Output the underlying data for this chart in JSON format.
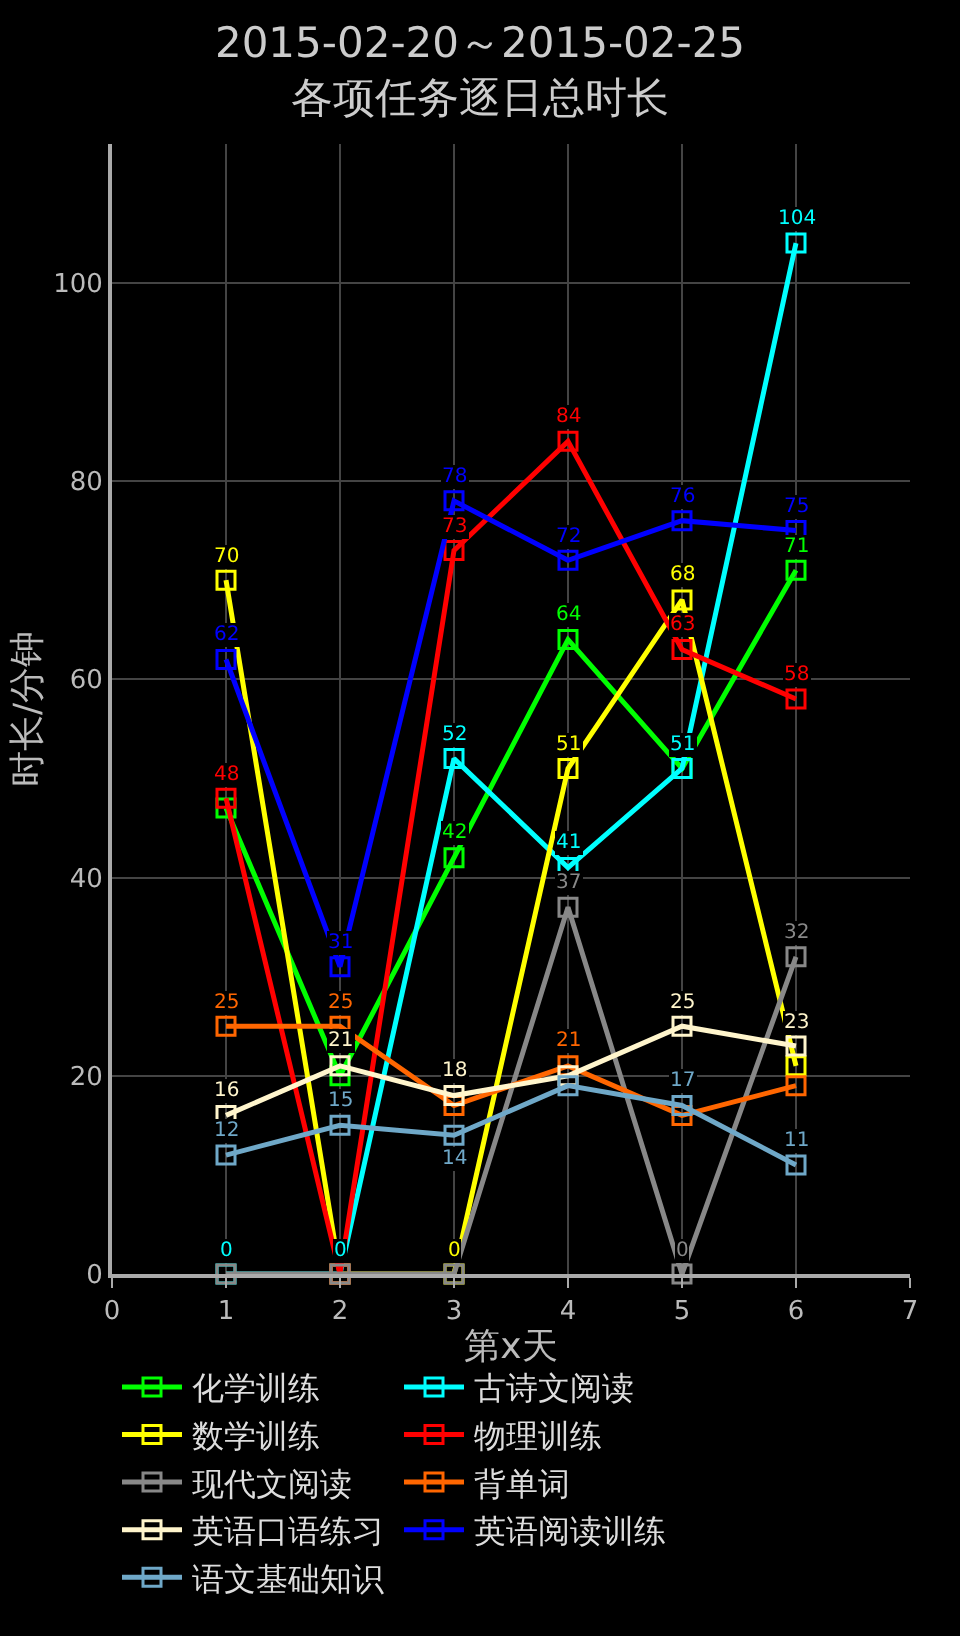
{
  "chart_data": {
    "type": "line",
    "title": "2015-02-20～2015-02-25",
    "subtitle": "各项任务逐日总时长",
    "xlabel": "第x天",
    "ylabel": "时长/分钟",
    "x": [
      1,
      2,
      3,
      4,
      5,
      6
    ],
    "xlim": [
      0,
      7
    ],
    "xticks": [
      0,
      1,
      2,
      3,
      4,
      5,
      6,
      7
    ],
    "ylim": [
      0,
      114
    ],
    "yticks": [
      0,
      20,
      40,
      60,
      80,
      100
    ],
    "grid": true,
    "legend": "bottom",
    "marker": "square",
    "line_style": "solid",
    "series": [
      {
        "name": "化学训练",
        "color": "#00ff00",
        "values": [
          47,
          20,
          42,
          64,
          51,
          71
        ],
        "value_labels": [
          null,
          null,
          "42",
          "64",
          null,
          "71"
        ]
      },
      {
        "name": "古诗文阅读",
        "color": "#00ffff",
        "values": [
          0,
          0,
          52,
          41,
          51,
          104
        ],
        "value_labels": [
          "0",
          "0",
          "52",
          "41",
          "51",
          "104"
        ]
      },
      {
        "name": "数学训练",
        "color": "#ffff00",
        "values": [
          70,
          0,
          0,
          51,
          68,
          21
        ],
        "value_labels": [
          "70",
          null,
          "0",
          "51",
          "68",
          null
        ]
      },
      {
        "name": "物理训练",
        "color": "#ff0000",
        "values": [
          48,
          0,
          73,
          84,
          63,
          58
        ],
        "value_labels": [
          "48",
          null,
          "73",
          "84",
          "63",
          "58"
        ]
      },
      {
        "name": "现代文阅读",
        "color": "#888888",
        "values": [
          0,
          0,
          0,
          37,
          0,
          32
        ],
        "value_labels": [
          null,
          null,
          null,
          "37",
          "0",
          "32"
        ]
      },
      {
        "name": "背单词",
        "color": "#ff6600",
        "values": [
          25,
          25,
          17,
          21,
          16,
          19
        ],
        "value_labels": [
          "25",
          "25",
          null,
          "21",
          null,
          null
        ]
      },
      {
        "name": "英语口语练习",
        "color": "#fff5cc",
        "values": [
          16,
          21,
          18,
          20,
          25,
          23
        ],
        "value_labels": [
          "16",
          "21",
          "18",
          null,
          "25",
          "23"
        ]
      },
      {
        "name": "英语阅读训练",
        "color": "#0000ff",
        "values": [
          62,
          31,
          78,
          72,
          76,
          75
        ],
        "value_labels": [
          "62",
          "31",
          "78",
          "72",
          "76",
          "75"
        ]
      },
      {
        "name": "语文基础知识",
        "color": "#6fa8c8",
        "values": [
          12,
          15,
          14,
          19,
          17,
          11
        ],
        "value_labels": [
          "12",
          "15",
          "14",
          null,
          "17",
          "11"
        ]
      }
    ]
  }
}
